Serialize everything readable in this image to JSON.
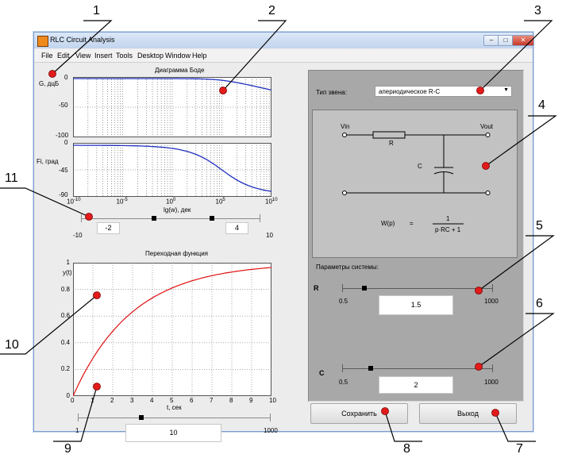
{
  "window": {
    "title": "RLC Circuit Analysis",
    "controls": [
      "–",
      "□",
      "✕"
    ]
  },
  "menu": [
    "File",
    "Edit",
    "View",
    "Insert",
    "Tools",
    "Desktop",
    "Window",
    "Help"
  ],
  "bode": {
    "title": "Диаграмма Боде",
    "gain_ylabel": "G, дцБ",
    "gain_yticks": [
      "0",
      "-50",
      "-100"
    ],
    "phase_ylabel": "Fi, град",
    "phase_yticks": [
      "0",
      "-45",
      "-90"
    ],
    "x_base": "10",
    "x_exponents": [
      "-10",
      "-5",
      "0",
      "5",
      "10"
    ],
    "xlabel": "lg(w), дек",
    "range_min": "-10",
    "range_max": "10",
    "left_edit": "-2",
    "right_edit": "4",
    "curve_color": "#1f2fbf"
  },
  "step": {
    "title": "Переходная функция",
    "ylabel": "y(t)",
    "yticks": [
      "0",
      "0.2",
      "0.4",
      "0.6",
      "0.8",
      "1"
    ],
    "xticks": [
      "0",
      "1",
      "2",
      "3",
      "4",
      "5",
      "6",
      "7",
      "8",
      "9",
      "10"
    ],
    "xlabel": "t, сек",
    "time_min": "1",
    "time_max": "1000",
    "time_edit": "10",
    "curve_color": "#e01010"
  },
  "panel": {
    "link_type_label": "Тип звена:",
    "link_type_value": "апериодическое R-C",
    "circuit": {
      "vin": "Vin",
      "vout": "Vout",
      "r": "R",
      "c": "C",
      "transfer_lhs": "W(p)",
      "eq": "=",
      "numerator": "1",
      "denominator": "p·RC + 1"
    },
    "params_label": "Параметры системы:",
    "r_label": "R",
    "r_min": "0.5",
    "r_max": "1000",
    "r_value": "1.5",
    "c_label": "C",
    "c_min": "0.5",
    "c_max": "1000",
    "c_value": "2"
  },
  "buttons": {
    "save": "Сохранить",
    "exit": "Выход"
  },
  "callouts": [
    "1",
    "2",
    "3",
    "4",
    "5",
    "6",
    "7",
    "8",
    "9",
    "10",
    "11"
  ]
}
